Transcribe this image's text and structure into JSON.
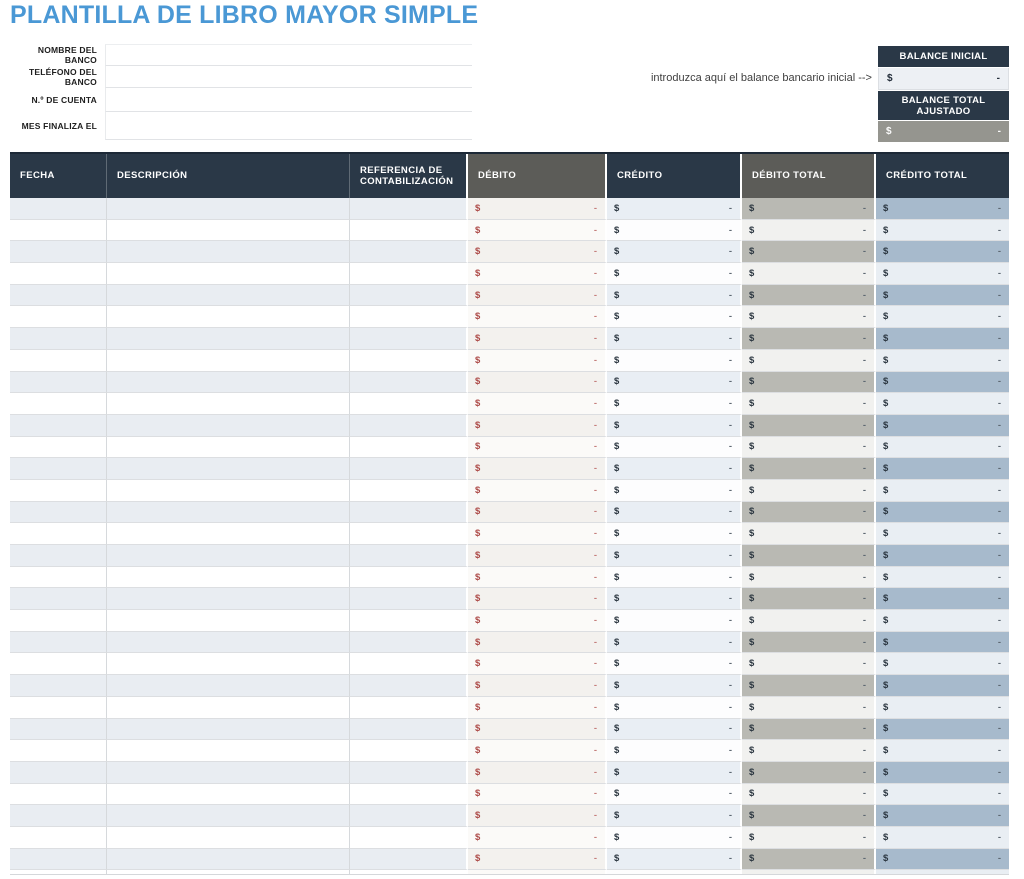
{
  "title": "PLANTILLA DE LIBRO MAYOR SIMPLE",
  "colors": {
    "title_blue": "#4a98d5",
    "header_navy": "#2a3847",
    "header_gray": "#5c5c58",
    "debit_red": "#ad4b48",
    "debit_total_odd": "#b9b9b3",
    "credit_total_odd": "#a7bacc",
    "adjusted_value_gray": "#95958f"
  },
  "form": {
    "fields": [
      {
        "label": "NOMBRE DEL BANCO",
        "value": ""
      },
      {
        "label": "TELÉFONO DEL BANCO",
        "value": ""
      },
      {
        "label": "N.º DE CUENTA",
        "value": ""
      },
      {
        "label": "MES FINALIZA EL",
        "value": ""
      }
    ]
  },
  "balance": {
    "note": "introduzca aquí el balance bancario inicial -->",
    "initial": {
      "label": "BALANCE INICIAL",
      "currency": "$",
      "value": "-"
    },
    "adjusted": {
      "label": "BALANCE TOTAL AJUSTADO",
      "currency": "$",
      "value": "-"
    }
  },
  "table": {
    "columns": [
      {
        "key": "fecha",
        "label": "FECHA",
        "type": "text",
        "header_style": "navy"
      },
      {
        "key": "descripcion",
        "label": "DESCRIPCIÓN",
        "type": "text",
        "header_style": "navy"
      },
      {
        "key": "referencia",
        "label": "REFERENCIA DE CONTABILIZACIÓN",
        "type": "text",
        "header_style": "navy"
      },
      {
        "key": "debito",
        "label": "DÉBITO",
        "type": "money",
        "header_style": "gray"
      },
      {
        "key": "credito",
        "label": "CRÉDITO",
        "type": "money",
        "header_style": "navy"
      },
      {
        "key": "debito-total",
        "label": "DÉBITO TOTAL",
        "type": "money",
        "header_style": "gray"
      },
      {
        "key": "credito-total",
        "label": "CRÉDITO TOTAL",
        "type": "money",
        "header_style": "navy"
      }
    ],
    "row_count": 32,
    "currency_symbol": "$",
    "empty_value": "-"
  }
}
